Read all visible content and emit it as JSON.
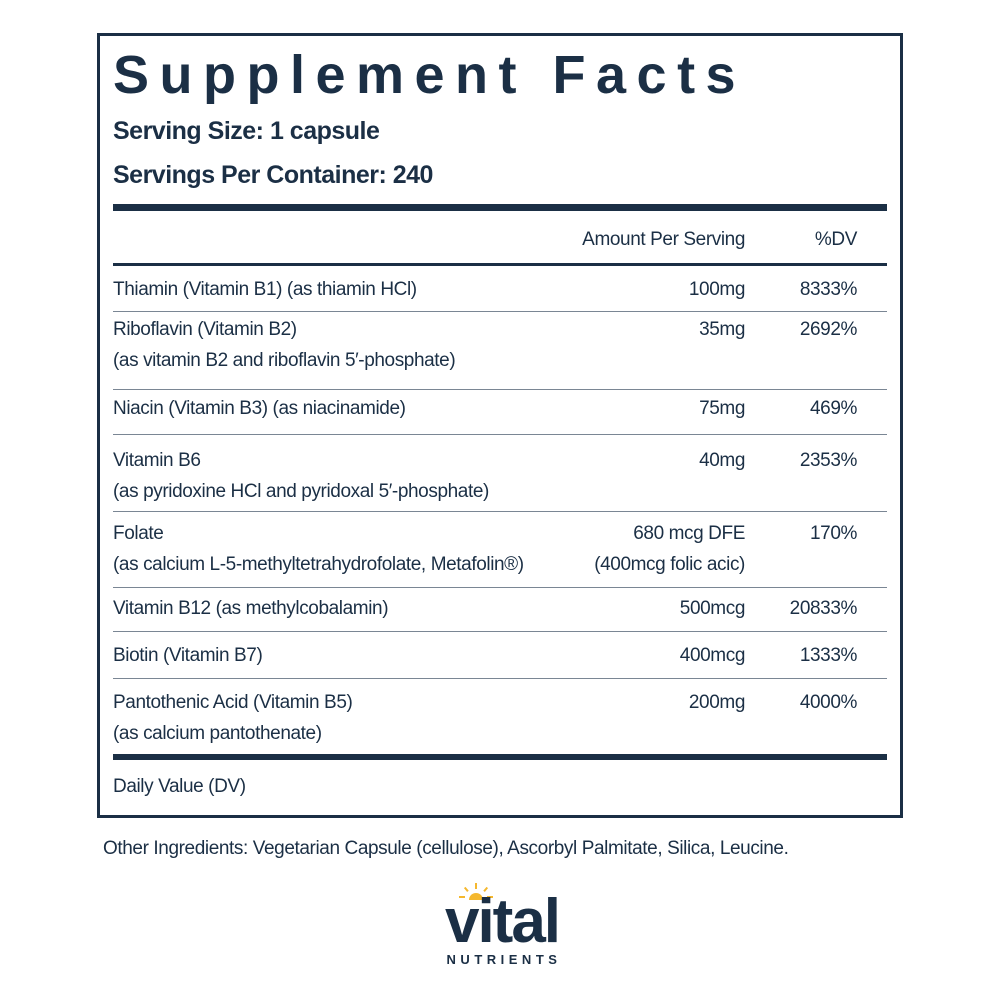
{
  "title": "Supplement Facts",
  "serving_size": "Serving Size: 1 capsule",
  "servings_per_container": "Servings Per Container: 240",
  "columns": {
    "amount": "Amount Per Serving",
    "dv": "%DV"
  },
  "rows": [
    {
      "name": "Thiamin (Vitamin B1) (as thiamin HCl)",
      "sub": "",
      "amount": "100mg",
      "amount2": "",
      "dv": "8333%"
    },
    {
      "name": "Riboflavin (Vitamin B2)",
      "sub": "(as vitamin B2 and riboflavin 5′-phosphate)",
      "amount": "35mg",
      "amount2": "",
      "dv": "2692%"
    },
    {
      "name": "Niacin (Vitamin B3) (as niacinamide)",
      "sub": "",
      "amount": "75mg",
      "amount2": "",
      "dv": "469%"
    },
    {
      "name": "Vitamin B6",
      "sub": "(as pyridoxine HCl and pyridoxal 5′-phosphate)",
      "amount": "40mg",
      "amount2": "",
      "dv": "2353%"
    },
    {
      "name": "Folate",
      "sub": "(as calcium L-5-methyltetrahydrofolate, Metafolin®)",
      "amount": "680 mcg  DFE",
      "amount2": "(400mcg folic acic)",
      "dv": "170%"
    },
    {
      "name": "Vitamin B12 (as methylcobalamin)",
      "sub": "",
      "amount": "500mcg",
      "amount2": "",
      "dv": "20833%"
    },
    {
      "name": "Biotin (Vitamin B7)",
      "sub": "",
      "amount": "400mcg",
      "amount2": "",
      "dv": "1333%"
    },
    {
      "name": "Pantothenic Acid (Vitamin B5)",
      "sub": "(as calcium pantothenate)",
      "amount": "200mg",
      "amount2": "",
      "dv": "4000%"
    }
  ],
  "footnote": "Daily Value (DV)",
  "other_ingredients": "Other Ingredients: Vegetarian Capsule (cellulose), Ascorbyl Palmitate, Silica, Leucine.",
  "logo": {
    "word": "vital",
    "sub": "NUTRIENTS",
    "colors": {
      "text": "#1b2f45",
      "sun": "#f5b82e"
    }
  }
}
